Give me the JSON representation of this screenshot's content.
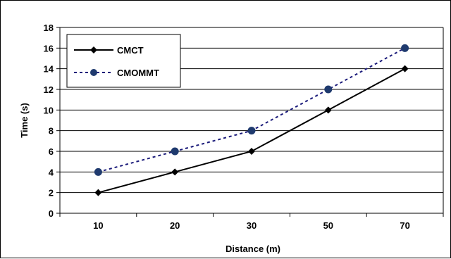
{
  "chart_data": {
    "type": "line",
    "title": "",
    "xlabel": "Distance (m)",
    "ylabel": "Time (s)",
    "categories": [
      "10",
      "20",
      "30",
      "50",
      "70"
    ],
    "ylim": [
      0,
      18
    ],
    "yticks": [
      "0",
      "2",
      "4",
      "6",
      "8",
      "10",
      "12",
      "14",
      "16",
      "18"
    ],
    "grid": "horizontal",
    "legend": "top-left",
    "series": [
      {
        "name": "CMCT",
        "values": [
          2,
          4,
          6,
          10,
          14
        ],
        "color": "#000000",
        "line": "solid",
        "marker": "diamond"
      },
      {
        "name": "CMOMMT",
        "values": [
          4,
          6,
          8,
          12,
          16
        ],
        "color": "#1a1a7a",
        "marker_color": "#1f3a6e",
        "line": "dashed",
        "marker": "circle"
      }
    ]
  }
}
